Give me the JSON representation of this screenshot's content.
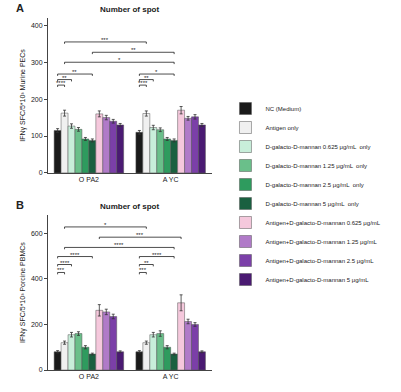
{
  "chart_data": [
    {
      "type": "bar",
      "panel_label": "A",
      "title": "Number of spot",
      "ylabel": "IFNγ SFC/5*10³ Murine PECs",
      "categories": [
        "O PA2",
        "A YC"
      ],
      "series": [
        {
          "name": "NC (Medium)",
          "color": "#1a1a1a",
          "values": [
            115,
            110
          ],
          "errors": [
            5,
            5
          ]
        },
        {
          "name": "Antigen only",
          "color": "#f0f0f0",
          "values": [
            162,
            161
          ],
          "errors": [
            8,
            7
          ]
        },
        {
          "name": "D-galacto-D-mannan 0.625 μg/mL  only",
          "color": "#c8eeda",
          "values": [
            127,
            123
          ],
          "errors": [
            6,
            6
          ]
        },
        {
          "name": "D-galacto-D-mannan 1.25 μg/mL  only",
          "color": "#6abf8a",
          "values": [
            118,
            117
          ],
          "errors": [
            5,
            5
          ]
        },
        {
          "name": "D-galacto-D-mannan 2.5 μg/mL  only",
          "color": "#2e9b5e",
          "values": [
            92,
            92
          ],
          "errors": [
            4,
            4
          ]
        },
        {
          "name": "D-galacto-D-mannan 5 μg/mL  only",
          "color": "#1a6040",
          "values": [
            88,
            88
          ],
          "errors": [
            4,
            4
          ]
        },
        {
          "name": "Antigen+D-galacto-D-mannan 0.625 μg/mL",
          "color": "#f5c8dc",
          "values": [
            160,
            170
          ],
          "errors": [
            8,
            10
          ]
        },
        {
          "name": "Antigen+D-galacto-D-mannan 1.25 μg/mL",
          "color": "#b07ac8",
          "values": [
            150,
            148
          ],
          "errors": [
            6,
            5
          ]
        },
        {
          "name": "Antigen+D-galacto-D-mannan 2.5 μg/mL",
          "color": "#7b3fa8",
          "values": [
            140,
            152
          ],
          "errors": [
            5,
            6
          ]
        },
        {
          "name": "Antigen+D-galacto-D-mannan 5 μg/mL",
          "color": "#4a1a72",
          "values": [
            130,
            130
          ],
          "errors": [
            4,
            4
          ]
        }
      ],
      "ylim": [
        0,
        420
      ],
      "yticks": [
        0,
        100,
        200,
        300,
        400
      ],
      "grid": false,
      "legend": "right",
      "annotations": [
        {
          "text": "****",
          "y": 233,
          "from": [
            0,
            0
          ],
          "to": [
            0,
            1
          ]
        },
        {
          "text": "**",
          "y": 248,
          "from": [
            0,
            0
          ],
          "to": [
            0,
            2
          ]
        },
        {
          "text": "**",
          "y": 263,
          "from": [
            0,
            0
          ],
          "to": [
            0,
            5
          ]
        },
        {
          "text": "****",
          "y": 233,
          "from": [
            1,
            0
          ],
          "to": [
            1,
            1
          ]
        },
        {
          "text": "**",
          "y": 248,
          "from": [
            1,
            0
          ],
          "to": [
            1,
            2
          ]
        },
        {
          "text": "*",
          "y": 263,
          "from": [
            1,
            0
          ],
          "to": [
            1,
            5
          ]
        },
        {
          "text": "*",
          "y": 295,
          "from": [
            0,
            1
          ],
          "to": [
            1,
            5
          ]
        },
        {
          "text": "**",
          "y": 322,
          "from": [
            0,
            5
          ],
          "to": [
            1,
            5
          ]
        },
        {
          "text": "***",
          "y": 350,
          "from": [
            0,
            1
          ],
          "to": [
            1,
            1
          ]
        }
      ]
    },
    {
      "type": "bar",
      "panel_label": "B",
      "title": "Number of spot",
      "ylabel": "IFNγ SFC/5*10³ Porcine PBMCs",
      "categories": [
        "O PA2",
        "A YC"
      ],
      "series": [
        {
          "name": "NC (Medium)",
          "color": "#1a1a1a",
          "values": [
            80,
            80
          ],
          "errors": [
            5,
            5
          ]
        },
        {
          "name": "Antigen only",
          "color": "#f0f0f0",
          "values": [
            120,
            120
          ],
          "errors": [
            7,
            7
          ]
        },
        {
          "name": "D-galacto-D-mannan 0.625 μg/mL  only",
          "color": "#c8eeda",
          "values": [
            155,
            155
          ],
          "errors": [
            10,
            10
          ]
        },
        {
          "name": "D-galacto-D-mannan 1.25 μg/mL  only",
          "color": "#6abf8a",
          "values": [
            160,
            160
          ],
          "errors": [
            8,
            12
          ]
        },
        {
          "name": "D-galacto-D-mannan 2.5 μg/mL  only",
          "color": "#2e9b5e",
          "values": [
            100,
            100
          ],
          "errors": [
            7,
            7
          ]
        },
        {
          "name": "D-galacto-D-mannan 5 μg/mL  only",
          "color": "#1a6040",
          "values": [
            70,
            70
          ],
          "errors": [
            4,
            4
          ]
        },
        {
          "name": "Antigen+D-galacto-D-mannan 0.625 μg/mL",
          "color": "#f5c8dc",
          "values": [
            262,
            295
          ],
          "errors": [
            25,
            35
          ]
        },
        {
          "name": "Antigen+D-galacto-D-mannan 1.25 μg/mL",
          "color": "#b07ac8",
          "values": [
            255,
            213
          ],
          "errors": [
            12,
            10
          ]
        },
        {
          "name": "Antigen+D-galacto-D-mannan 2.5 μg/mL",
          "color": "#7b3fa8",
          "values": [
            235,
            200
          ],
          "errors": [
            10,
            8
          ]
        },
        {
          "name": "Antigen+D-galacto-D-mannan 5 μg/mL",
          "color": "#4a1a72",
          "values": [
            80,
            80
          ],
          "errors": [
            4,
            4
          ]
        }
      ],
      "ylim": [
        0,
        680
      ],
      "yticks": [
        0,
        200,
        400,
        600
      ],
      "grid": false,
      "legend": "right",
      "annotations": [
        {
          "text": "***",
          "y": 420,
          "from": [
            0,
            0
          ],
          "to": [
            0,
            1
          ]
        },
        {
          "text": "****",
          "y": 455,
          "from": [
            0,
            0
          ],
          "to": [
            0,
            2
          ]
        },
        {
          "text": "****",
          "y": 490,
          "from": [
            0,
            0
          ],
          "to": [
            0,
            5
          ]
        },
        {
          "text": "***",
          "y": 420,
          "from": [
            1,
            0
          ],
          "to": [
            1,
            1
          ]
        },
        {
          "text": "**",
          "y": 455,
          "from": [
            1,
            0
          ],
          "to": [
            1,
            2
          ]
        },
        {
          "text": "****",
          "y": 490,
          "from": [
            1,
            0
          ],
          "to": [
            1,
            5
          ]
        },
        {
          "text": "****",
          "y": 530,
          "from": [
            0,
            1
          ],
          "to": [
            1,
            5
          ]
        },
        {
          "text": "***",
          "y": 575,
          "from": [
            0,
            6
          ],
          "to": [
            1,
            6
          ]
        },
        {
          "text": "*",
          "y": 620,
          "from": [
            0,
            1
          ],
          "to": [
            1,
            1
          ]
        }
      ]
    }
  ]
}
